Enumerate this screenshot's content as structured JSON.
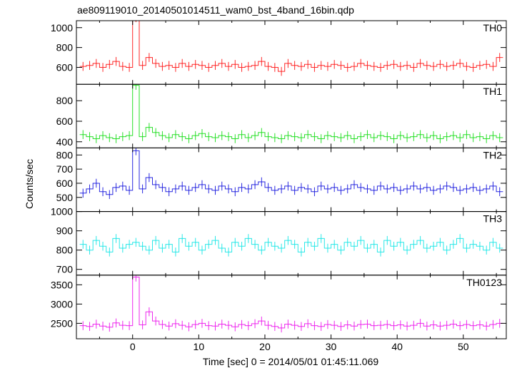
{
  "chart_data": {
    "type": "line",
    "title": "ae809119010_20140501014511_wam0_bst_4band_16bin.qdp",
    "xlabel": "Time [sec] 0 = 2014/05/01 01:45:11.069",
    "ylabel": "Counts/sec",
    "xlim": [
      -8.5,
      56.5
    ],
    "x_ticks": [
      0,
      10,
      20,
      30,
      40,
      50
    ],
    "grid": false,
    "legend": "none",
    "panels": [
      {
        "name": "TH0",
        "color": "#ff2a2a",
        "ylim": [
          430,
          1070
        ],
        "y_ticks": [
          600,
          800,
          1000
        ],
        "x": [
          -7.5,
          -6.5,
          -5.5,
          -4.5,
          -3.5,
          -2.5,
          -1.5,
          -0.5,
          0.5,
          1.5,
          2.5,
          3.5,
          4.5,
          5.5,
          6.5,
          7.5,
          8.5,
          9.5,
          10.5,
          11.5,
          12.5,
          13.5,
          14.5,
          15.5,
          16.5,
          17.5,
          18.5,
          19.5,
          20.5,
          21.5,
          22.5,
          23.5,
          24.5,
          25.5,
          26.5,
          27.5,
          28.5,
          29.5,
          30.5,
          31.5,
          32.5,
          33.5,
          34.5,
          35.5,
          36.5,
          37.5,
          38.5,
          39.5,
          40.5,
          41.5,
          42.5,
          43.5,
          44.5,
          45.5,
          46.5,
          47.5,
          48.5,
          49.5,
          50.5,
          51.5,
          52.5,
          53.5,
          54.5,
          55.5
        ],
        "y": [
          610,
          620,
          640,
          600,
          630,
          660,
          610,
          600,
          1100,
          620,
          700,
          640,
          610,
          620,
          600,
          640,
          610,
          630,
          620,
          600,
          620,
          640,
          610,
          630,
          600,
          610,
          620,
          660,
          610,
          600,
          560,
          640,
          620,
          610,
          630,
          600,
          620,
          610,
          630,
          620,
          600,
          610,
          640,
          620,
          610,
          600,
          620,
          630,
          610,
          620,
          600,
          640,
          620,
          610,
          630,
          610,
          620,
          640,
          610,
          600,
          620,
          630,
          610,
          700
        ]
      },
      {
        "name": "TH1",
        "color": "#2ae02a",
        "ylim": [
          340,
          960
        ],
        "y_ticks": [
          400,
          600,
          800
        ],
        "x": [
          -7.5,
          -6.5,
          -5.5,
          -4.5,
          -3.5,
          -2.5,
          -1.5,
          -0.5,
          0.5,
          1.5,
          2.5,
          3.5,
          4.5,
          5.5,
          6.5,
          7.5,
          8.5,
          9.5,
          10.5,
          11.5,
          12.5,
          13.5,
          14.5,
          15.5,
          16.5,
          17.5,
          18.5,
          19.5,
          20.5,
          21.5,
          22.5,
          23.5,
          24.5,
          25.5,
          26.5,
          27.5,
          28.5,
          29.5,
          30.5,
          31.5,
          32.5,
          33.5,
          34.5,
          35.5,
          36.5,
          37.5,
          38.5,
          39.5,
          40.5,
          41.5,
          42.5,
          43.5,
          44.5,
          45.5,
          46.5,
          47.5,
          48.5,
          49.5,
          50.5,
          51.5,
          52.5,
          53.5,
          54.5,
          55.5
        ],
        "y": [
          470,
          450,
          430,
          460,
          440,
          430,
          450,
          460,
          950,
          450,
          540,
          490,
          460,
          440,
          470,
          450,
          430,
          460,
          480,
          450,
          440,
          460,
          450,
          430,
          470,
          440,
          460,
          490,
          450,
          440,
          430,
          460,
          450,
          440,
          470,
          450,
          430,
          460,
          450,
          440,
          460,
          430,
          450,
          470,
          440,
          460,
          450,
          430,
          460,
          440,
          450,
          470,
          440,
          460,
          430,
          450,
          460,
          440,
          470,
          440,
          450,
          430,
          460,
          440
        ]
      },
      {
        "name": "TH2",
        "color": "#2a2ae0",
        "ylim": [
          400,
          850
        ],
        "y_ticks": [
          500,
          600,
          700,
          800
        ],
        "x": [
          -7.5,
          -6.5,
          -5.5,
          -4.5,
          -3.5,
          -2.5,
          -1.5,
          -0.5,
          0.5,
          1.5,
          2.5,
          3.5,
          4.5,
          5.5,
          6.5,
          7.5,
          8.5,
          9.5,
          10.5,
          11.5,
          12.5,
          13.5,
          14.5,
          15.5,
          16.5,
          17.5,
          18.5,
          19.5,
          20.5,
          21.5,
          22.5,
          23.5,
          24.5,
          25.5,
          26.5,
          27.5,
          28.5,
          29.5,
          30.5,
          31.5,
          32.5,
          33.5,
          34.5,
          35.5,
          36.5,
          37.5,
          38.5,
          39.5,
          40.5,
          41.5,
          42.5,
          43.5,
          44.5,
          45.5,
          46.5,
          47.5,
          48.5,
          49.5,
          50.5,
          51.5,
          52.5,
          53.5,
          54.5,
          55.5
        ],
        "y": [
          530,
          560,
          600,
          540,
          520,
          570,
          580,
          550,
          830,
          560,
          640,
          590,
          570,
          540,
          560,
          580,
          550,
          570,
          590,
          560,
          550,
          580,
          560,
          540,
          570,
          560,
          590,
          610,
          570,
          550,
          560,
          580,
          550,
          570,
          560,
          540,
          580,
          560,
          570,
          550,
          560,
          590,
          570,
          560,
          550,
          580,
          560,
          570,
          550,
          560,
          580,
          560,
          570,
          550,
          560,
          580,
          570,
          550,
          560,
          570,
          550,
          560,
          580,
          540
        ]
      },
      {
        "name": "TH3",
        "color": "#2ae8e8",
        "ylim": [
          670,
          1000
        ],
        "y_ticks": [
          700,
          800,
          900,
          1000
        ],
        "x": [
          -7.5,
          -6.5,
          -5.5,
          -4.5,
          -3.5,
          -2.5,
          -1.5,
          -0.5,
          0.5,
          1.5,
          2.5,
          3.5,
          4.5,
          5.5,
          6.5,
          7.5,
          8.5,
          9.5,
          10.5,
          11.5,
          12.5,
          13.5,
          14.5,
          15.5,
          16.5,
          17.5,
          18.5,
          19.5,
          20.5,
          21.5,
          22.5,
          23.5,
          24.5,
          25.5,
          26.5,
          27.5,
          28.5,
          29.5,
          30.5,
          31.5,
          32.5,
          33.5,
          34.5,
          35.5,
          36.5,
          37.5,
          38.5,
          39.5,
          40.5,
          41.5,
          42.5,
          43.5,
          44.5,
          45.5,
          46.5,
          47.5,
          48.5,
          49.5,
          50.5,
          51.5,
          52.5,
          53.5,
          54.5,
          55.5
        ],
        "y": [
          830,
          800,
          850,
          820,
          790,
          860,
          810,
          830,
          840,
          820,
          800,
          850,
          810,
          830,
          790,
          860,
          820,
          840,
          800,
          830,
          850,
          810,
          790,
          840,
          820,
          860,
          830,
          800,
          840,
          820,
          810,
          850,
          830,
          790,
          840,
          820,
          860,
          810,
          830,
          800,
          840,
          820,
          850,
          810,
          830,
          790,
          850,
          820,
          840,
          800,
          830,
          850,
          810,
          820,
          840,
          800,
          830,
          860,
          810,
          830,
          820,
          800,
          840,
          810
        ]
      },
      {
        "name": "TH0123",
        "color": "#ee2aee",
        "ylim": [
          2100,
          3750
        ],
        "y_ticks": [
          2500,
          3000,
          3500
        ],
        "x": [
          -7.5,
          -6.5,
          -5.5,
          -4.5,
          -3.5,
          -2.5,
          -1.5,
          -0.5,
          0.5,
          1.5,
          2.5,
          3.5,
          4.5,
          5.5,
          6.5,
          7.5,
          8.5,
          9.5,
          10.5,
          11.5,
          12.5,
          13.5,
          14.5,
          15.5,
          16.5,
          17.5,
          18.5,
          19.5,
          20.5,
          21.5,
          22.5,
          23.5,
          24.5,
          25.5,
          26.5,
          27.5,
          28.5,
          29.5,
          30.5,
          31.5,
          32.5,
          33.5,
          34.5,
          35.5,
          36.5,
          37.5,
          38.5,
          39.5,
          40.5,
          41.5,
          42.5,
          43.5,
          44.5,
          45.5,
          46.5,
          47.5,
          48.5,
          49.5,
          50.5,
          51.5,
          52.5,
          53.5,
          54.5,
          55.5
        ],
        "y": [
          2440,
          2420,
          2480,
          2430,
          2400,
          2510,
          2450,
          2440,
          3700,
          2460,
          2800,
          2560,
          2470,
          2430,
          2490,
          2450,
          2410,
          2470,
          2500,
          2440,
          2430,
          2480,
          2450,
          2410,
          2470,
          2440,
          2490,
          2560,
          2450,
          2420,
          2380,
          2480,
          2450,
          2420,
          2490,
          2440,
          2420,
          2470,
          2450,
          2420,
          2460,
          2430,
          2470,
          2480,
          2440,
          2450,
          2470,
          2440,
          2460,
          2430,
          2450,
          2500,
          2430,
          2460,
          2430,
          2450,
          2480,
          2440,
          2470,
          2440,
          2460,
          2430,
          2470,
          2500
        ]
      }
    ]
  }
}
